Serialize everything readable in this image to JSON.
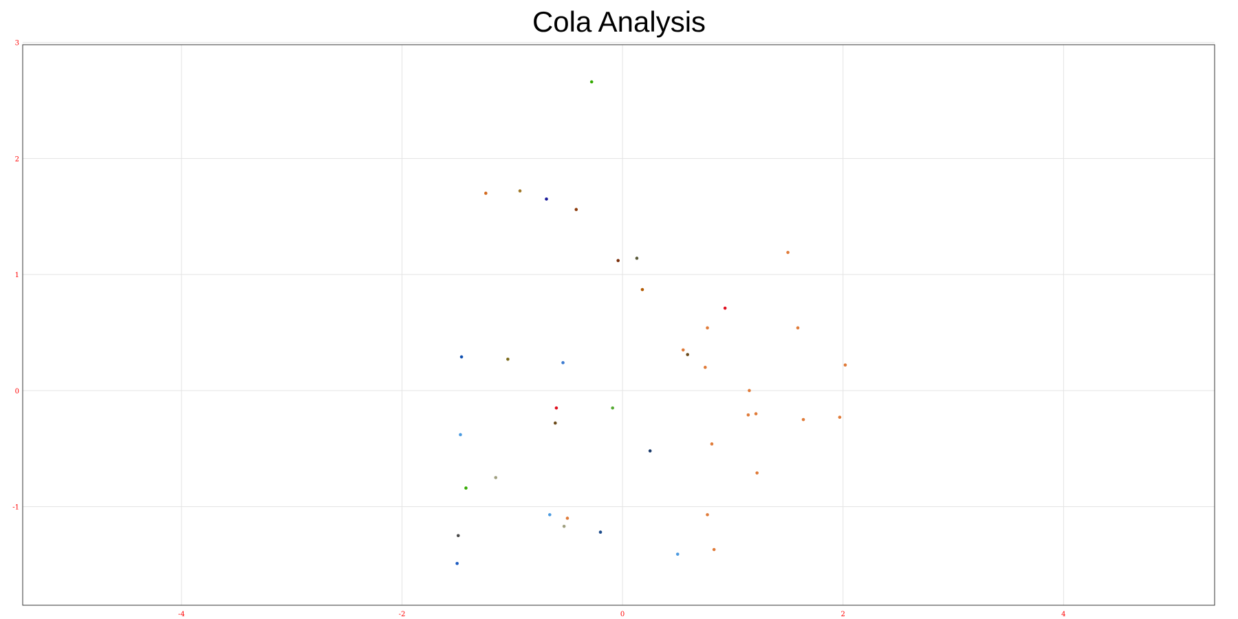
{
  "chart_data": {
    "type": "scatter",
    "title": "Cola Analysis",
    "xlabel": "",
    "ylabel": "",
    "xlim": [
      -5.44,
      5.37
    ],
    "ylim": [
      -1.85,
      2.98
    ],
    "xticks": [
      -4,
      -2,
      0,
      2,
      4
    ],
    "yticks": [
      -1,
      0,
      1,
      2,
      3
    ],
    "grid": true,
    "tick_label_color": "#ff0000",
    "points": [
      {
        "x": -0.28,
        "y": 2.66,
        "color": "#33aa00"
      },
      {
        "x": -1.24,
        "y": 1.7,
        "color": "#d2691e"
      },
      {
        "x": -0.93,
        "y": 1.72,
        "color": "#a07828"
      },
      {
        "x": -0.69,
        "y": 1.65,
        "color": "#1a1a99"
      },
      {
        "x": -0.42,
        "y": 1.56,
        "color": "#8b3a0a"
      },
      {
        "x": -0.04,
        "y": 1.12,
        "color": "#7a2e0a"
      },
      {
        "x": 0.13,
        "y": 1.14,
        "color": "#5a5a3a"
      },
      {
        "x": 0.18,
        "y": 0.87,
        "color": "#b35900"
      },
      {
        "x": 1.5,
        "y": 1.19,
        "color": "#e07b39"
      },
      {
        "x": 0.93,
        "y": 0.71,
        "color": "#e01020"
      },
      {
        "x": 0.77,
        "y": 0.54,
        "color": "#e07b39"
      },
      {
        "x": 1.59,
        "y": 0.54,
        "color": "#e07b39"
      },
      {
        "x": 0.55,
        "y": 0.35,
        "color": "#e07b39"
      },
      {
        "x": 0.59,
        "y": 0.31,
        "color": "#6b4a1a"
      },
      {
        "x": 0.75,
        "y": 0.2,
        "color": "#e07b39"
      },
      {
        "x": 2.02,
        "y": 0.22,
        "color": "#e07b39"
      },
      {
        "x": -1.46,
        "y": 0.29,
        "color": "#1050b0"
      },
      {
        "x": -1.04,
        "y": 0.27,
        "color": "#7a6a1a"
      },
      {
        "x": -0.54,
        "y": 0.24,
        "color": "#3a7ad0"
      },
      {
        "x": 1.15,
        "y": 0.0,
        "color": "#e07b39"
      },
      {
        "x": -0.6,
        "y": -0.15,
        "color": "#e01020"
      },
      {
        "x": -0.09,
        "y": -0.15,
        "color": "#55aa33"
      },
      {
        "x": -0.61,
        "y": -0.28,
        "color": "#6b4a1a"
      },
      {
        "x": 1.14,
        "y": -0.21,
        "color": "#e07b39"
      },
      {
        "x": 1.21,
        "y": -0.2,
        "color": "#e07b39"
      },
      {
        "x": 1.64,
        "y": -0.25,
        "color": "#e07b39"
      },
      {
        "x": 1.97,
        "y": -0.23,
        "color": "#e07b39"
      },
      {
        "x": -1.47,
        "y": -0.38,
        "color": "#4a9ae0"
      },
      {
        "x": 0.25,
        "y": -0.52,
        "color": "#1a3a6a"
      },
      {
        "x": 0.81,
        "y": -0.46,
        "color": "#e07b39"
      },
      {
        "x": -1.15,
        "y": -0.75,
        "color": "#a0a080"
      },
      {
        "x": -1.42,
        "y": -0.84,
        "color": "#33aa00"
      },
      {
        "x": 1.22,
        "y": -0.71,
        "color": "#e07b39"
      },
      {
        "x": 0.77,
        "y": -1.07,
        "color": "#e07b39"
      },
      {
        "x": -0.66,
        "y": -1.07,
        "color": "#4a9ae0"
      },
      {
        "x": -0.5,
        "y": -1.1,
        "color": "#e07b39"
      },
      {
        "x": -0.53,
        "y": -1.17,
        "color": "#a0a080"
      },
      {
        "x": -0.2,
        "y": -1.22,
        "color": "#1a4a8a"
      },
      {
        "x": -1.49,
        "y": -1.25,
        "color": "#4a4a4a"
      },
      {
        "x": -1.5,
        "y": -1.49,
        "color": "#1a5ac0"
      },
      {
        "x": 0.5,
        "y": -1.41,
        "color": "#4a9ae0"
      },
      {
        "x": 0.83,
        "y": -1.37,
        "color": "#e07b39"
      }
    ]
  }
}
